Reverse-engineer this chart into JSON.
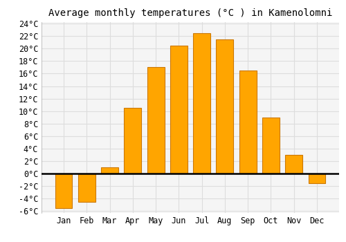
{
  "title": "Average monthly temperatures (°C ) in Kamenolomni",
  "months": [
    "Jan",
    "Feb",
    "Mar",
    "Apr",
    "May",
    "Jun",
    "Jul",
    "Aug",
    "Sep",
    "Oct",
    "Nov",
    "Dec"
  ],
  "values": [
    -5.5,
    -4.5,
    1.0,
    10.5,
    17.0,
    20.5,
    22.5,
    21.5,
    16.5,
    9.0,
    3.0,
    -1.5
  ],
  "bar_color": "#FFA500",
  "bar_edge_color": "#CC7700",
  "ylim_min": -6,
  "ylim_max": 24,
  "yticks": [
    -6,
    -4,
    -2,
    0,
    2,
    4,
    6,
    8,
    10,
    12,
    14,
    16,
    18,
    20,
    22,
    24
  ],
  "background_color": "#ffffff",
  "plot_bg_color": "#f5f5f5",
  "grid_color": "#dddddd",
  "title_fontsize": 10,
  "tick_fontsize": 8.5,
  "bar_width": 0.75
}
